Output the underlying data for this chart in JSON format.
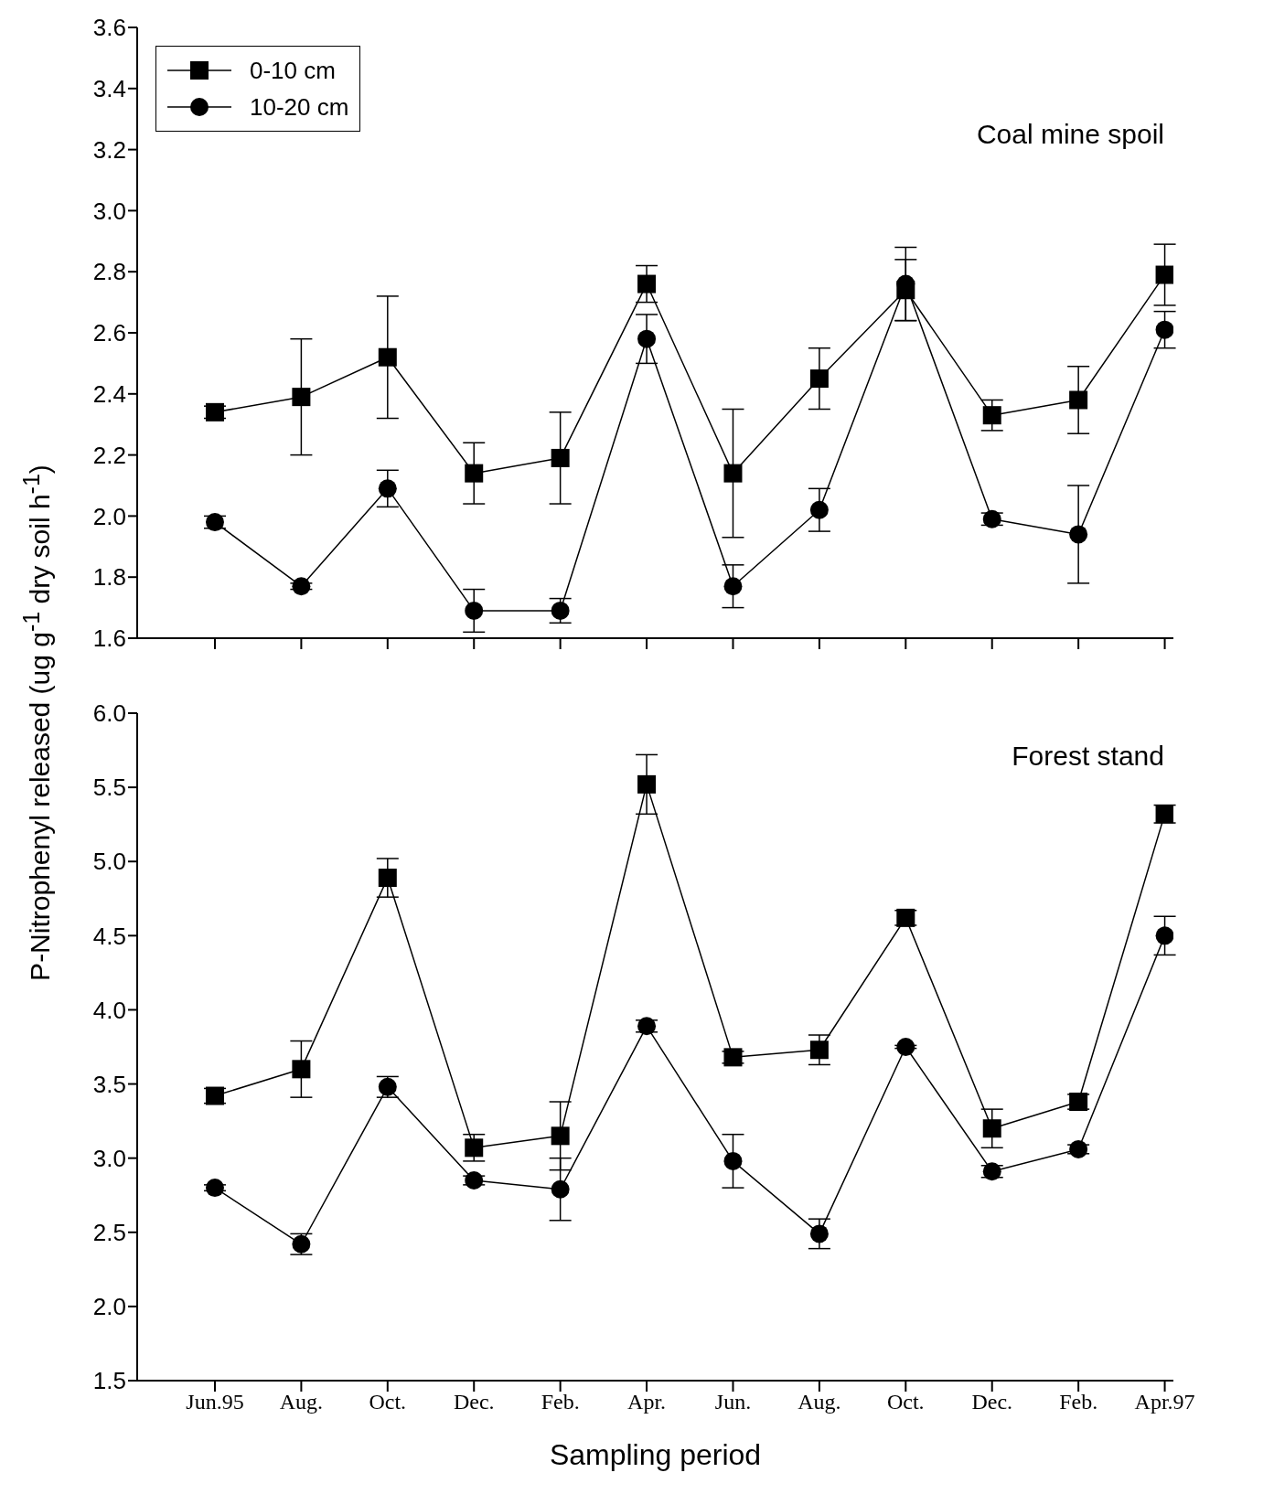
{
  "chart_data": [
    {
      "type": "line",
      "ylabel": "P-Nitrophenyl released  (ug g$^{-1}$ dry soil h$^{-1}$)",
      "annotations": [
        "Coal mine spoil"
      ],
      "categories": [
        null,
        null,
        null,
        null,
        null,
        null,
        null,
        null,
        null,
        null,
        null,
        null
      ],
      "series": [
        {
          "name": "0-10 cm",
          "color": "#000000",
          "marker": "square",
          "values": [
            2.34,
            2.39,
            2.52,
            2.14,
            2.19,
            2.76,
            2.14,
            2.45,
            2.74,
            2.33,
            2.38,
            2.79
          ],
          "errors": [
            0.02,
            0.19,
            0.2,
            0.1,
            0.15,
            0.06,
            0.21,
            0.1,
            0.1,
            0.05,
            0.11,
            0.1
          ]
        },
        {
          "name": "10-20 cm",
          "color": "#000000",
          "marker": "circle",
          "values": [
            1.98,
            1.77,
            2.09,
            1.69,
            1.69,
            2.58,
            1.77,
            2.02,
            2.76,
            1.99,
            1.94,
            2.61
          ],
          "errors": [
            0.02,
            0.01,
            0.06,
            0.07,
            0.04,
            0.08,
            0.07,
            0.07,
            0.12,
            0.02,
            0.16,
            0.06
          ]
        }
      ],
      "ylim": [
        1.6,
        3.6
      ],
      "yticks": [
        {
          "value": 1.6,
          "label": "1.6"
        },
        {
          "value": 1.8,
          "label": "1.8"
        },
        {
          "value": 2,
          "label": "2.0"
        },
        {
          "value": 2.2,
          "label": "2.2"
        },
        {
          "value": 2.4,
          "label": "2.4"
        },
        {
          "value": 2.6,
          "label": "2.6"
        },
        {
          "value": 2.8,
          "label": "2.8"
        },
        {
          "value": 3,
          "label": "3.0"
        },
        {
          "value": 3.2,
          "label": "3.2"
        },
        {
          "value": 3.4,
          "label": "3.4"
        },
        {
          "value": 3.6,
          "label": "3.6"
        }
      ],
      "tick_labels": "y",
      "legend": "top left",
      "grid": false
    },
    {
      "type": "line",
      "xlabel": "Sampling period",
      "annotations": [
        "Forest stand"
      ],
      "categories": [
        "Jun.95",
        "Aug.",
        "Oct.",
        "Dec.",
        "Feb.",
        "Apr.",
        "Jun.",
        "Aug.",
        "Oct.",
        "Dec.",
        "Feb.",
        "Apr.97"
      ],
      "series": [
        {
          "color": "#000000",
          "marker": "square",
          "values": [
            3.42,
            3.6,
            4.89,
            3.07,
            3.15,
            5.52,
            3.68,
            3.73,
            4.62,
            3.2,
            3.38,
            5.32
          ],
          "errors": [
            0.05,
            0.19,
            0.13,
            0.09,
            0.23,
            0.2,
            0.04,
            0.1,
            0.05,
            0.13,
            0.05,
            0.06
          ]
        },
        {
          "color": "#000000",
          "marker": "circle",
          "values": [
            2.8,
            2.42,
            3.48,
            2.85,
            2.79,
            3.89,
            2.98,
            2.49,
            3.75,
            2.91,
            3.06,
            4.5
          ],
          "errors": [
            0.02,
            0.07,
            0.07,
            0.03,
            0.21,
            0.04,
            0.18,
            0.1,
            0.01,
            0.04,
            0.03,
            0.13
          ]
        }
      ],
      "ylim": [
        1.5,
        6
      ],
      "yticks": [
        {
          "value": 1.5,
          "label": "1.5"
        },
        {
          "value": 2,
          "label": "2.0"
        },
        {
          "value": 2.5,
          "label": "2.5"
        },
        {
          "value": 3,
          "label": "3.0"
        },
        {
          "value": 3.5,
          "label": "3.5"
        },
        {
          "value": 4,
          "label": "4.0"
        },
        {
          "value": 4.5,
          "label": "4.5"
        },
        {
          "value": 5,
          "label": "5.0"
        },
        {
          "value": 5.5,
          "label": "5.5"
        },
        {
          "value": 6,
          "label": "6.0"
        }
      ],
      "legend": false,
      "grid": false
    }
  ]
}
